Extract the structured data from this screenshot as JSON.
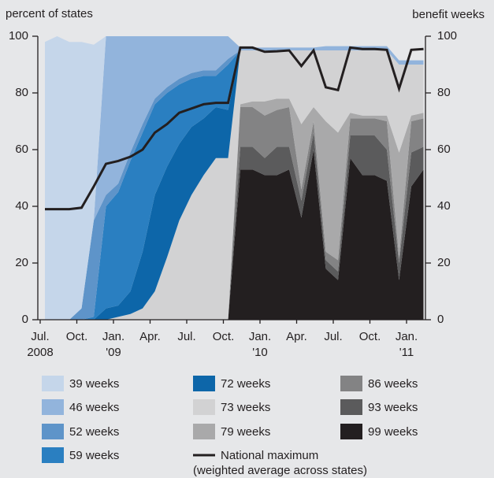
{
  "chart_data": {
    "type": "stacked_area",
    "ylabel": "percent of states",
    "y2label": "benefit weeks",
    "categories": [
      [
        "Jul.",
        "2008"
      ],
      null,
      null,
      "Oct.",
      null,
      null,
      [
        "Jan.",
        "'09"
      ],
      null,
      null,
      "Apr.",
      null,
      null,
      "Jul.",
      null,
      null,
      "Oct.",
      null,
      null,
      [
        "Jan.",
        "'10"
      ],
      null,
      null,
      "Apr.",
      null,
      null,
      "Jul.",
      null,
      null,
      "Oct.",
      null,
      null,
      [
        "Jan.",
        "'11"
      ],
      null
    ],
    "ylim": [
      0,
      100
    ],
    "yticks": [
      0,
      20,
      40,
      60,
      80,
      100
    ],
    "y2lim": [
      0,
      100
    ],
    "y2ticks": [
      0,
      20,
      40,
      60,
      80,
      100
    ],
    "series": [
      {
        "name": "39 weeks",
        "color": "#c5d6ea",
        "values": [
          98,
          100,
          98,
          94,
          62,
          0,
          0,
          0,
          0,
          0,
          0,
          0,
          0,
          0,
          0,
          0,
          0,
          0,
          0,
          0,
          0,
          0,
          0,
          0,
          0,
          0,
          0,
          0,
          0,
          0,
          0,
          0
        ]
      },
      {
        "name": "46 weeks",
        "color": "#92b4dc",
        "values": [
          0,
          0,
          0,
          0,
          0,
          56,
          52,
          41,
          31,
          22,
          18,
          15,
          13,
          12,
          12,
          8,
          1,
          1,
          1,
          1,
          1,
          1,
          1,
          1.5,
          1.5,
          1.5,
          1.5,
          1.5,
          1.5,
          1.5,
          1.5,
          1.5
        ]
      },
      {
        "name": "52 weeks",
        "color": "#5e94c9",
        "values": [
          0,
          0,
          0,
          4,
          34,
          4,
          3,
          3,
          3,
          2,
          2,
          2,
          2,
          2,
          2,
          2,
          0,
          0,
          0,
          0,
          0,
          0,
          0,
          0,
          0,
          0,
          0,
          0,
          0,
          0,
          0,
          0
        ]
      },
      {
        "name": "59 weeks",
        "color": "#2a7fc1",
        "values": [
          0,
          0,
          0,
          0,
          1,
          36,
          40,
          46,
          42,
          32,
          26,
          21,
          17,
          15,
          11,
          16,
          0,
          0,
          0,
          0,
          0,
          0,
          0,
          0,
          0,
          0,
          0,
          0,
          0,
          0,
          0,
          0
        ]
      },
      {
        "name": "72 weeks",
        "color": "#0d66a9",
        "values": [
          0,
          0,
          0,
          0,
          0,
          4,
          4,
          8,
          20,
          34,
          32,
          27,
          24,
          20,
          18,
          17,
          0,
          0,
          0,
          0,
          0,
          0,
          0,
          0,
          0,
          0,
          0,
          0,
          0,
          0,
          0,
          0
        ]
      },
      {
        "name": "73 weeks",
        "color": "#d2d2d3",
        "values": [
          0,
          0,
          0,
          0,
          0,
          0,
          1,
          2,
          4,
          10,
          22,
          35,
          44,
          51,
          57,
          57,
          19,
          18,
          18,
          17,
          17,
          26,
          20,
          25,
          29,
          22,
          23,
          23,
          23,
          31,
          18,
          17
        ]
      },
      {
        "name": "79 weeks",
        "color": "#a9a9aa",
        "values": [
          0,
          0,
          0,
          0,
          0,
          0,
          0,
          0,
          0,
          0,
          0,
          0,
          0,
          0,
          0,
          0,
          1,
          2,
          5,
          4,
          3,
          23,
          5,
          46,
          45,
          2,
          1,
          1,
          2,
          37,
          2,
          2
        ]
      },
      {
        "name": "National maximum",
        "name_note": "(weighted average across states)",
        "type": "line",
        "axis": "y2",
        "color": "#231f20",
        "values": [
          39,
          39,
          39,
          39.5,
          47,
          55,
          56,
          57.5,
          60,
          66,
          69,
          73,
          74.5,
          76,
          76.5,
          76.5,
          96,
          96,
          94.5,
          94.7,
          95,
          89.5,
          95,
          82,
          81,
          96,
          95.5,
          95.5,
          95.2,
          81.5,
          95.2,
          95.5
        ]
      },
      {
        "name": "86 weeks",
        "color": "#838384",
        "values": [
          0,
          0,
          0,
          0,
          0,
          0,
          0,
          0,
          0,
          0,
          0,
          0,
          0,
          0,
          0,
          0,
          14,
          14,
          15,
          13,
          14,
          4,
          4,
          3,
          4,
          6,
          6,
          6,
          10,
          2,
          11,
          10
        ]
      },
      {
        "name": "93 weeks",
        "color": "#5b5b5c",
        "values": [
          0,
          0,
          0,
          0,
          0,
          0,
          0,
          0,
          0,
          0,
          0,
          0,
          0,
          0,
          0,
          0,
          8,
          8,
          6,
          10,
          8,
          6,
          6,
          3,
          3,
          8,
          14,
          14,
          11,
          6,
          12,
          8
        ]
      },
      {
        "name": "99 weeks",
        "color": "#231f20",
        "values": [
          0,
          0,
          0,
          0,
          0,
          0,
          0,
          0,
          0,
          0,
          0,
          0,
          0,
          0,
          0,
          0,
          53,
          53,
          51,
          51,
          53,
          36,
          60,
          18,
          14,
          57,
          51,
          51,
          49,
          14,
          47,
          53
        ]
      }
    ]
  }
}
